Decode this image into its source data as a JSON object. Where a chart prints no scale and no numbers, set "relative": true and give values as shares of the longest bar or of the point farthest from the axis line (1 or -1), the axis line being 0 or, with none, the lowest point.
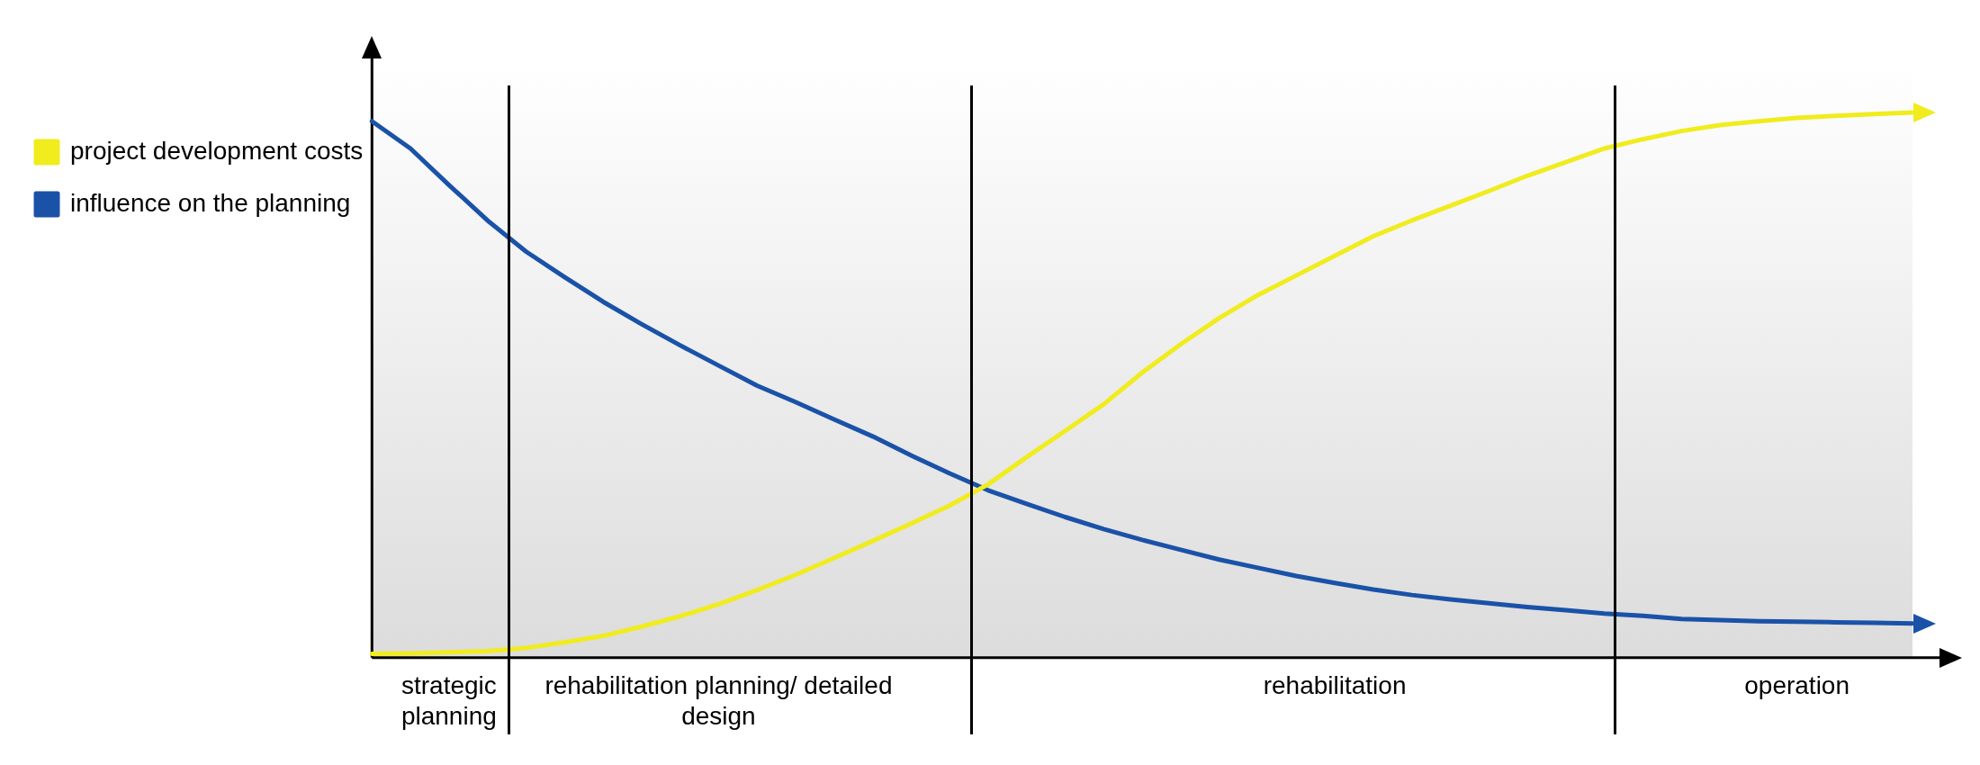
{
  "chart_data": {
    "type": "line",
    "relative": true,
    "legend": "left",
    "marker": "none",
    "categories": [
      null,
      null,
      "strategic planning",
      null,
      null,
      null,
      null,
      null,
      null,
      "rehabilitation planning/ detailed design",
      null,
      null,
      null,
      null,
      null,
      null,
      null,
      null,
      null,
      null,
      null,
      null,
      null,
      null,
      null,
      "rehabilitation",
      null,
      null,
      null,
      null,
      null,
      null,
      null,
      null,
      null,
      null,
      null,
      "operation",
      null,
      null,
      null
    ],
    "series": [
      {
        "name": "project development costs",
        "color": "#f0ec1e",
        "values": [
          0.007,
          0.008,
          0.01,
          0.012,
          0.018,
          0.028,
          0.04,
          0.057,
          0.076,
          0.098,
          0.124,
          0.152,
          0.183,
          0.214,
          0.246,
          0.279,
          0.318,
          0.368,
          0.416,
          0.465,
          0.523,
          0.575,
          0.623,
          0.665,
          0.701,
          0.737,
          0.773,
          0.802,
          0.829,
          0.856,
          0.884,
          0.909,
          0.934,
          0.951,
          0.966,
          0.977,
          0.984,
          0.99,
          0.994,
          0.997,
          1
        ]
      },
      {
        "name": "influence on the planning",
        "color": "#1a52a8",
        "values": [
          0.984,
          0.934,
          0.867,
          0.802,
          0.745,
          0.698,
          0.653,
          0.612,
          0.573,
          0.536,
          0.499,
          0.469,
          0.437,
          0.406,
          0.371,
          0.338,
          0.307,
          0.282,
          0.258,
          0.236,
          0.216,
          0.198,
          0.18,
          0.165,
          0.15,
          0.137,
          0.125,
          0.115,
          0.107,
          0.1,
          0.093,
          0.087,
          0.081,
          0.077,
          0.071,
          0.069,
          0.067,
          0.066,
          0.065,
          0.064,
          0.063
        ]
      }
    ]
  }
}
